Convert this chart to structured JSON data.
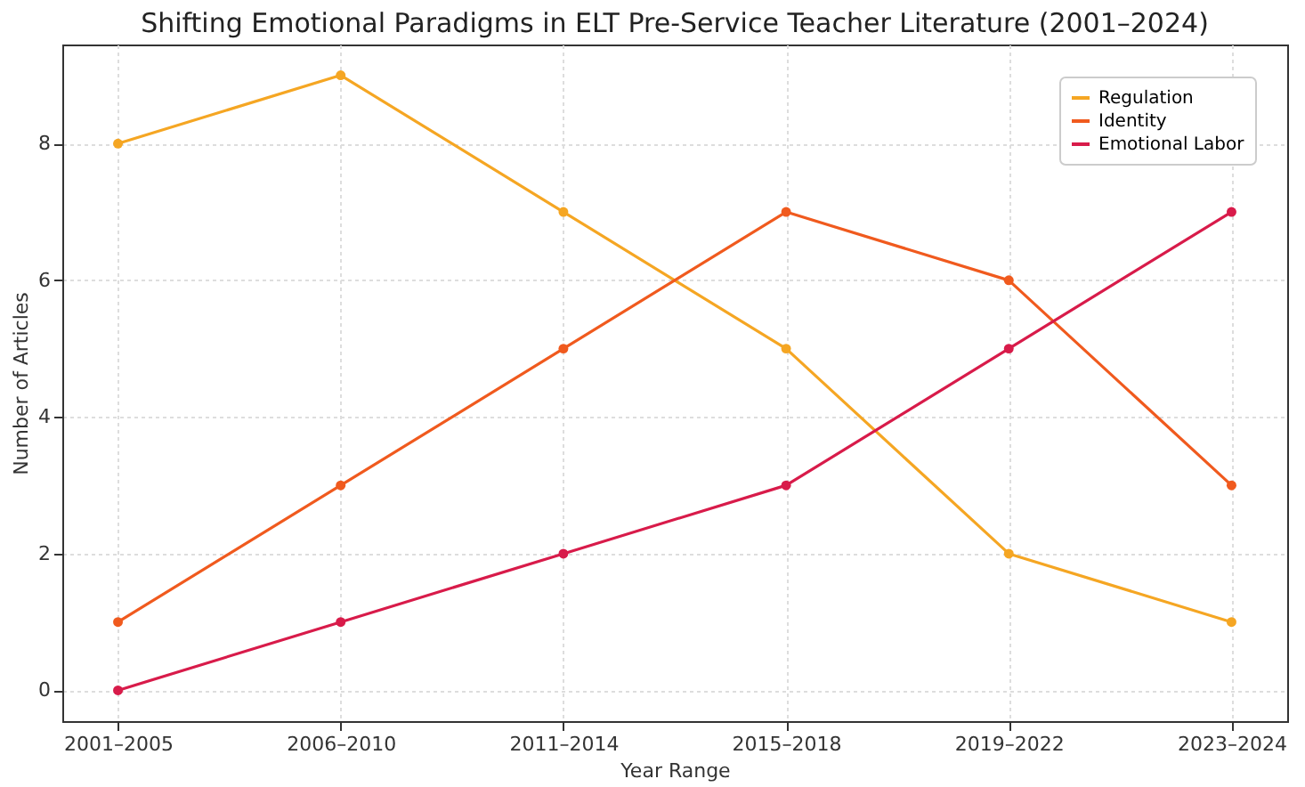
{
  "chart_data": {
    "type": "line",
    "title": "Shifting Emotional Paradigms in ELT Pre-Service Teacher Literature (2001–2024)",
    "xlabel": "Year Range",
    "ylabel": "Number of Articles",
    "categories": [
      "2001–2005",
      "2006–2010",
      "2011–2014",
      "2015–2018",
      "2019–2022",
      "2023–2024"
    ],
    "series": [
      {
        "name": "Regulation",
        "color": "#f5a623",
        "values": [
          8,
          9,
          7,
          5,
          2,
          1
        ]
      },
      {
        "name": "Identity",
        "color": "#f05a1e",
        "values": [
          1,
          3,
          5,
          7,
          6,
          3
        ]
      },
      {
        "name": "Emotional Labor",
        "color": "#d81b4a",
        "values": [
          0,
          1,
          2,
          3,
          5,
          7
        ]
      }
    ],
    "ylim": [
      -0.45,
      9.45
    ],
    "yticks": [
      0,
      2,
      4,
      6,
      8
    ],
    "grid": true,
    "legend": "top right",
    "marker": "circle",
    "line_style": "solid"
  }
}
